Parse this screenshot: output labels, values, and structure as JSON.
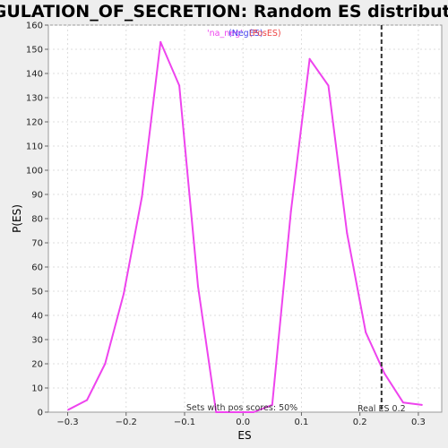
{
  "chart_data": {
    "type": "line",
    "title": "REGULATION_OF_SECRETION: Random ES distribution",
    "xlabel": "ES",
    "ylabel": "P(ES)",
    "xlim": [
      -0.333,
      0.34
    ],
    "ylim": [
      0,
      160
    ],
    "x_ticks": [
      -0.3,
      -0.2,
      -0.1,
      0.0,
      0.1,
      0.2,
      0.3
    ],
    "x_tick_labels": [
      "−0.3",
      "−0.2",
      "−0.1",
      "0.0",
      "0.1",
      "0.2",
      "0.3"
    ],
    "y_ticks": [
      0,
      10,
      20,
      30,
      40,
      50,
      60,
      70,
      80,
      90,
      100,
      110,
      120,
      130,
      140,
      150,
      160
    ],
    "grid": true,
    "series": [
      {
        "color": "#ee44ee",
        "x": [
          -0.299,
          -0.267,
          -0.236,
          -0.204,
          -0.173,
          -0.141,
          -0.109,
          -0.077,
          -0.046,
          -0.014,
          0.018,
          0.05,
          0.082,
          0.114,
          0.146,
          0.178,
          0.21,
          0.242,
          0.274,
          0.306
        ],
        "y": [
          1,
          5,
          20,
          49,
          89,
          153,
          135,
          52,
          0,
          0,
          0,
          3,
          83,
          146,
          135,
          74,
          33,
          16,
          4,
          3
        ]
      }
    ],
    "real_es": {
      "x": 0.237,
      "label": "Real ES 0.2"
    },
    "legend": {
      "placement": "top-center",
      "entries": [
        {
          "label": "'na_neg'",
          "color": "#ee44ee"
        },
        {
          "label": "(NegES)",
          "color": "#4444ee"
        },
        {
          "label": "(PosES)",
          "color": "#ee4444"
        }
      ]
    },
    "annotations": {
      "pos_scores": "Sets with pos scores: 50%"
    }
  }
}
